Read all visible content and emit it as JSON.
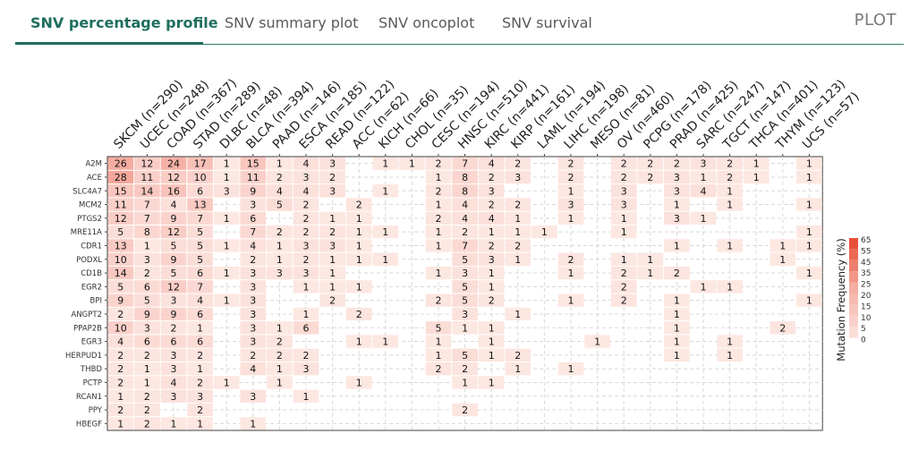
{
  "tabs": [
    {
      "label": "SNV percentage profile",
      "active": true
    },
    {
      "label": "SNV summary plot",
      "active": false
    },
    {
      "label": "SNV oncoplot",
      "active": false
    },
    {
      "label": "SNV survival",
      "active": false
    }
  ],
  "plot_label": "PLOT",
  "colors": {
    "accent": "#1e6e5e",
    "low": "#fde9e4",
    "high": "#e8503a"
  },
  "chart_data": {
    "type": "heatmap",
    "columns": [
      "SKCM (n=290)",
      "UCEC (n=248)",
      "COAD (n=367)",
      "STAD (n=289)",
      "DLBC (n=48)",
      "BLCA (n=394)",
      "PAAD (n=146)",
      "ESCA (n=185)",
      "READ (n=122)",
      "ACC (n=62)",
      "KICH (n=66)",
      "CHOL (n=35)",
      "CESC (n=194)",
      "HNSC (n=510)",
      "KIRC (n=441)",
      "KIRP (n=161)",
      "LAML (n=194)",
      "LIHC (n=198)",
      "MESO (n=81)",
      "OV (n=460)",
      "PCPG (n=178)",
      "PRAD (n=425)",
      "SARC (n=247)",
      "TGCT (n=147)",
      "THCA (n=401)",
      "THYM (n=123)",
      "UCS (n=57)"
    ],
    "rows": [
      "A2M",
      "ACE",
      "SLC4A7",
      "MCM2",
      "PTGS2",
      "MRE11A",
      "CDR1",
      "PODXL",
      "CD1B",
      "EGR2",
      "BPI",
      "ANGPT2",
      "PPAP2B",
      "EGR3",
      "HERPUD1",
      "THBD",
      "PCTP",
      "RCAN1",
      "PPY",
      "HBEGF"
    ],
    "values": [
      [
        26,
        12,
        24,
        17,
        1,
        15,
        1,
        4,
        3,
        null,
        1,
        1,
        2,
        7,
        4,
        2,
        null,
        2,
        null,
        2,
        2,
        2,
        3,
        2,
        1,
        null,
        1
      ],
      [
        28,
        11,
        12,
        10,
        1,
        11,
        2,
        3,
        2,
        null,
        null,
        null,
        1,
        8,
        2,
        3,
        null,
        2,
        null,
        2,
        2,
        3,
        1,
        2,
        1,
        null,
        1
      ],
      [
        15,
        14,
        16,
        6,
        3,
        9,
        4,
        4,
        3,
        null,
        1,
        null,
        2,
        8,
        3,
        null,
        null,
        1,
        null,
        3,
        null,
        3,
        4,
        1,
        null,
        null,
        null
      ],
      [
        11,
        7,
        4,
        13,
        null,
        3,
        5,
        2,
        null,
        2,
        null,
        null,
        1,
        4,
        2,
        2,
        null,
        3,
        null,
        3,
        null,
        1,
        null,
        1,
        null,
        null,
        1
      ],
      [
        12,
        7,
        9,
        7,
        1,
        6,
        null,
        2,
        1,
        1,
        null,
        null,
        2,
        4,
        4,
        1,
        null,
        1,
        null,
        1,
        null,
        3,
        1,
        null,
        null,
        null,
        null
      ],
      [
        5,
        8,
        12,
        5,
        null,
        7,
        2,
        2,
        2,
        1,
        1,
        null,
        1,
        2,
        1,
        1,
        1,
        null,
        null,
        1,
        null,
        null,
        null,
        null,
        null,
        null,
        1
      ],
      [
        13,
        1,
        5,
        5,
        1,
        4,
        1,
        3,
        3,
        1,
        null,
        null,
        1,
        7,
        2,
        2,
        null,
        null,
        null,
        null,
        null,
        1,
        null,
        1,
        null,
        1,
        1
      ],
      [
        10,
        3,
        9,
        5,
        null,
        2,
        1,
        2,
        1,
        1,
        1,
        null,
        null,
        5,
        3,
        1,
        null,
        2,
        null,
        1,
        1,
        null,
        null,
        null,
        null,
        1,
        null
      ],
      [
        14,
        2,
        5,
        6,
        1,
        3,
        3,
        3,
        1,
        null,
        null,
        null,
        1,
        3,
        1,
        null,
        null,
        1,
        null,
        2,
        1,
        2,
        null,
        null,
        null,
        null,
        1
      ],
      [
        5,
        6,
        12,
        7,
        null,
        3,
        null,
        1,
        1,
        1,
        null,
        null,
        null,
        5,
        1,
        null,
        null,
        null,
        null,
        2,
        null,
        null,
        1,
        1,
        null,
        null,
        null
      ],
      [
        9,
        5,
        3,
        4,
        1,
        3,
        null,
        null,
        2,
        null,
        null,
        null,
        2,
        5,
        2,
        null,
        null,
        1,
        null,
        2,
        null,
        1,
        null,
        null,
        null,
        null,
        1
      ],
      [
        2,
        9,
        9,
        6,
        null,
        3,
        null,
        1,
        null,
        2,
        null,
        null,
        null,
        3,
        null,
        1,
        null,
        null,
        null,
        null,
        null,
        1,
        null,
        null,
        null,
        null,
        null
      ],
      [
        10,
        3,
        2,
        1,
        null,
        3,
        1,
        6,
        null,
        null,
        null,
        null,
        5,
        1,
        1,
        null,
        null,
        null,
        null,
        null,
        null,
        1,
        null,
        null,
        null,
        2,
        null
      ],
      [
        4,
        6,
        6,
        6,
        null,
        3,
        2,
        null,
        null,
        1,
        1,
        null,
        1,
        null,
        1,
        null,
        null,
        null,
        1,
        null,
        null,
        1,
        null,
        1,
        null,
        null,
        null
      ],
      [
        2,
        2,
        3,
        2,
        null,
        2,
        2,
        2,
        null,
        null,
        null,
        null,
        1,
        5,
        1,
        2,
        null,
        null,
        null,
        null,
        null,
        1,
        null,
        1,
        null,
        null,
        null
      ],
      [
        2,
        1,
        3,
        1,
        null,
        4,
        1,
        3,
        null,
        null,
        null,
        null,
        2,
        2,
        null,
        1,
        null,
        1,
        null,
        null,
        null,
        null,
        null,
        null,
        null,
        null,
        null
      ],
      [
        2,
        1,
        4,
        2,
        1,
        null,
        1,
        null,
        null,
        1,
        null,
        null,
        null,
        1,
        1,
        null,
        null,
        null,
        null,
        null,
        null,
        null,
        null,
        null,
        null,
        null,
        null
      ],
      [
        1,
        2,
        3,
        3,
        null,
        3,
        null,
        1,
        null,
        null,
        null,
        null,
        null,
        null,
        null,
        null,
        null,
        null,
        null,
        null,
        null,
        null,
        null,
        null,
        null,
        null,
        null
      ],
      [
        2,
        2,
        null,
        2,
        null,
        null,
        null,
        null,
        null,
        null,
        null,
        null,
        null,
        2,
        null,
        null,
        null,
        null,
        null,
        null,
        null,
        null,
        null,
        null,
        null,
        null,
        null
      ],
      [
        1,
        2,
        1,
        1,
        null,
        1,
        null,
        null,
        null,
        null,
        null,
        null,
        null,
        null,
        null,
        null,
        null,
        null,
        null,
        null,
        null,
        null,
        null,
        null,
        null,
        null,
        null
      ]
    ],
    "legend": {
      "title": "Mutation Frequency (%)",
      "ticks": [
        65,
        55,
        45,
        35,
        25,
        20,
        15,
        10,
        5,
        0
      ],
      "range": [
        0,
        65
      ]
    },
    "grid": "dashed"
  }
}
